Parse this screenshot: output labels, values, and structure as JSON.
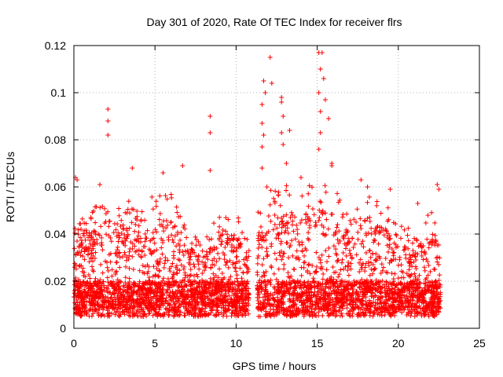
{
  "chart_data": {
    "type": "scatter",
    "title": "Day 301 of 2020, Rate Of TEC Index for receiver flrs",
    "xlabel": "GPS time / hours",
    "ylabel": "ROTI / TECUs",
    "xlim": [
      0,
      25
    ],
    "ylim": [
      0,
      0.12
    ],
    "xticks": [
      0,
      5,
      10,
      15,
      20,
      25
    ],
    "xtick_labels": [
      "0",
      "5",
      "10",
      "15",
      "20",
      "25"
    ],
    "yticks": [
      0,
      0.02,
      0.04,
      0.06,
      0.08,
      0.1,
      0.12
    ],
    "ytick_labels": [
      "0",
      "0.02",
      "0.04",
      "0.06",
      "0.08",
      "0.1",
      "0.12"
    ],
    "grid": true,
    "legend": "none",
    "marker": "plus",
    "color": "#ff0000",
    "data_x_range": [
      0,
      22.6
    ],
    "data_gap": [
      10.8,
      11.3
    ],
    "notable_points": [
      {
        "x": 0.1,
        "y": 0.064
      },
      {
        "x": 0.2,
        "y": 0.063
      },
      {
        "x": 2.1,
        "y": 0.093
      },
      {
        "x": 2.1,
        "y": 0.088
      },
      {
        "x": 2.1,
        "y": 0.082
      },
      {
        "x": 1.6,
        "y": 0.061
      },
      {
        "x": 3.6,
        "y": 0.068
      },
      {
        "x": 5.5,
        "y": 0.066
      },
      {
        "x": 6.7,
        "y": 0.069
      },
      {
        "x": 8.4,
        "y": 0.09
      },
      {
        "x": 8.4,
        "y": 0.083
      },
      {
        "x": 8.4,
        "y": 0.067
      },
      {
        "x": 11.7,
        "y": 0.105
      },
      {
        "x": 11.8,
        "y": 0.1
      },
      {
        "x": 11.6,
        "y": 0.095
      },
      {
        "x": 11.6,
        "y": 0.087
      },
      {
        "x": 11.7,
        "y": 0.082
      },
      {
        "x": 11.6,
        "y": 0.077
      },
      {
        "x": 11.6,
        "y": 0.068
      },
      {
        "x": 11.9,
        "y": 0.06
      },
      {
        "x": 12.1,
        "y": 0.115
      },
      {
        "x": 12.2,
        "y": 0.104
      },
      {
        "x": 12.8,
        "y": 0.098
      },
      {
        "x": 12.8,
        "y": 0.096
      },
      {
        "x": 12.9,
        "y": 0.09
      },
      {
        "x": 12.8,
        "y": 0.083
      },
      {
        "x": 12.9,
        "y": 0.078
      },
      {
        "x": 13.3,
        "y": 0.084
      },
      {
        "x": 13.1,
        "y": 0.07
      },
      {
        "x": 14.0,
        "y": 0.064
      },
      {
        "x": 15.1,
        "y": 0.117
      },
      {
        "x": 15.3,
        "y": 0.117
      },
      {
        "x": 15.2,
        "y": 0.11
      },
      {
        "x": 15.4,
        "y": 0.106
      },
      {
        "x": 15.1,
        "y": 0.1
      },
      {
        "x": 15.5,
        "y": 0.097
      },
      {
        "x": 15.2,
        "y": 0.092
      },
      {
        "x": 15.7,
        "y": 0.089
      },
      {
        "x": 15.2,
        "y": 0.083
      },
      {
        "x": 15.1,
        "y": 0.076
      },
      {
        "x": 15.9,
        "y": 0.07
      },
      {
        "x": 15.9,
        "y": 0.069
      },
      {
        "x": 17.7,
        "y": 0.063
      },
      {
        "x": 18.1,
        "y": 0.06
      },
      {
        "x": 19.5,
        "y": 0.059
      },
      {
        "x": 21.2,
        "y": 0.053
      },
      {
        "x": 22.4,
        "y": 0.061
      },
      {
        "x": 22.5,
        "y": 0.059
      }
    ]
  }
}
